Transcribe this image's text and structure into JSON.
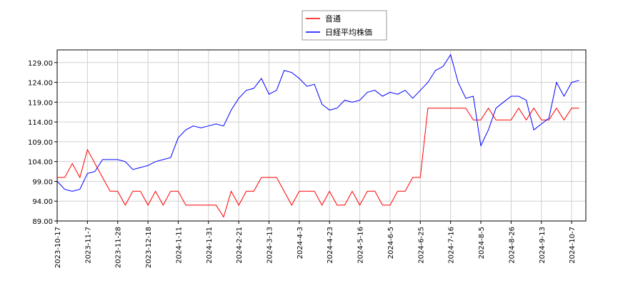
{
  "chart_data": {
    "type": "line",
    "categories": [
      "2023-10-17",
      null,
      null,
      null,
      "2023-11-7",
      null,
      null,
      null,
      "2023-11-28",
      null,
      null,
      null,
      "2023-12-18",
      null,
      null,
      null,
      "2024-1-11",
      null,
      null,
      null,
      "2024-1-31",
      null,
      null,
      null,
      "2024-2-21",
      null,
      null,
      null,
      "2024-3-13",
      null,
      null,
      null,
      "2024-4-3",
      null,
      null,
      null,
      "2024-4-23",
      null,
      null,
      null,
      "2024-5-16",
      null,
      null,
      null,
      "2024-6-5",
      null,
      null,
      null,
      "2024-6-25",
      null,
      null,
      null,
      "2024-7-16",
      null,
      null,
      null,
      "2024-8-5",
      null,
      null,
      null,
      "2024-8-26",
      null,
      null,
      null,
      "2024-9-13",
      null,
      null,
      null,
      "2024-10-7",
      null
    ],
    "series": [
      {
        "name": "音通",
        "color": "#ff0000",
        "values": [
          100,
          100,
          103.5,
          100,
          107,
          103.5,
          100,
          96.5,
          96.5,
          93,
          96.5,
          96.5,
          93,
          96.5,
          93,
          96.5,
          96.5,
          93,
          93,
          93,
          93,
          93,
          90,
          96.5,
          93,
          96.5,
          96.5,
          100,
          100,
          100,
          96.5,
          93,
          96.5,
          96.5,
          96.5,
          93,
          96.5,
          93,
          93,
          96.5,
          93,
          96.5,
          96.5,
          93,
          93,
          96.5,
          96.5,
          100,
          100,
          117.5,
          117.5,
          117.5,
          117.5,
          117.5,
          117.5,
          114.5,
          114.5,
          117.5,
          114.5,
          114.5,
          114.5,
          117.5,
          114.5,
          117.5,
          114.5,
          114.5,
          117.5,
          114.5,
          117.5,
          117.5
        ]
      },
      {
        "name": "日経平均株価",
        "color": "#0000ff",
        "values": [
          99,
          97,
          96.5,
          97,
          101,
          101.5,
          104.5,
          104.5,
          104.5,
          104,
          102,
          102.5,
          103,
          104,
          104.5,
          105,
          110,
          112,
          113,
          112.5,
          113,
          113.5,
          113,
          117,
          120,
          122,
          122.5,
          125,
          121,
          122,
          127,
          126.5,
          125,
          123,
          123.5,
          118.5,
          117,
          117.5,
          119.5,
          119,
          119.5,
          121.5,
          122,
          120.5,
          121.5,
          121,
          122,
          120,
          122,
          124,
          127,
          128,
          131,
          124,
          120,
          120.5,
          108,
          112,
          117.5,
          119,
          120.5,
          120.5,
          119.5,
          112,
          113.5,
          115,
          124,
          120.5,
          124,
          124.5
        ]
      }
    ],
    "ylim": [
      89,
      132.2
    ],
    "yticks": [
      {
        "value": 89,
        "label": "89.00"
      },
      {
        "value": 94,
        "label": "94.00"
      },
      {
        "value": 99,
        "label": "99.00"
      },
      {
        "value": 104,
        "label": "104.00"
      },
      {
        "value": 109,
        "label": "109.00"
      },
      {
        "value": 114,
        "label": "114.00"
      },
      {
        "value": 119,
        "label": "119.00"
      },
      {
        "value": 124,
        "label": "124.00"
      },
      {
        "value": 129,
        "label": "129.00"
      }
    ],
    "grid": true,
    "legend": "top"
  }
}
